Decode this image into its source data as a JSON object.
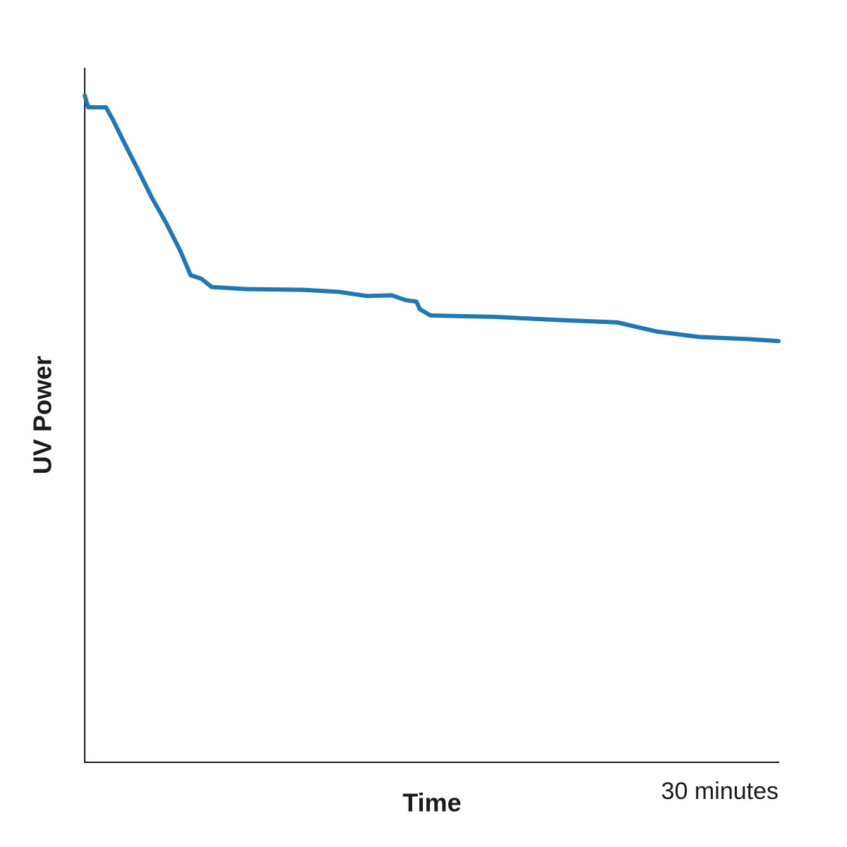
{
  "chart_data": {
    "type": "line",
    "x_label": "Time",
    "y_label": "UV Power",
    "x": [
      0,
      0.15,
      0.92,
      1.22,
      1.68,
      2.29,
      2.9,
      3.51,
      4.12,
      4.58,
      5.04,
      5.49,
      7.02,
      9.46,
      10.99,
      12.21,
      13.28,
      13.89,
      14.34,
      14.49,
      14.95,
      17.7,
      20.75,
      23.04,
      23.8,
      24.72,
      26.55,
      28.68,
      30
    ],
    "series": [
      {
        "color": "#1f77b4",
        "values": [
          96.1,
          94.4,
          94.4,
          92.6,
          89.5,
          85.5,
          81.4,
          77.8,
          73.8,
          70.2,
          69.7,
          68.5,
          68.2,
          68.1,
          67.8,
          67.2,
          67.3,
          66.6,
          66.4,
          65.3,
          64.4,
          64.2,
          63.7,
          63.4,
          62.8,
          62.1,
          61.3,
          61.0,
          60.7
        ]
      }
    ],
    "xlim": [
      0,
      30
    ],
    "ylim": [
      0,
      100
    ],
    "xticks": [
      {
        "value": 30,
        "label": "30 minutes"
      }
    ]
  }
}
